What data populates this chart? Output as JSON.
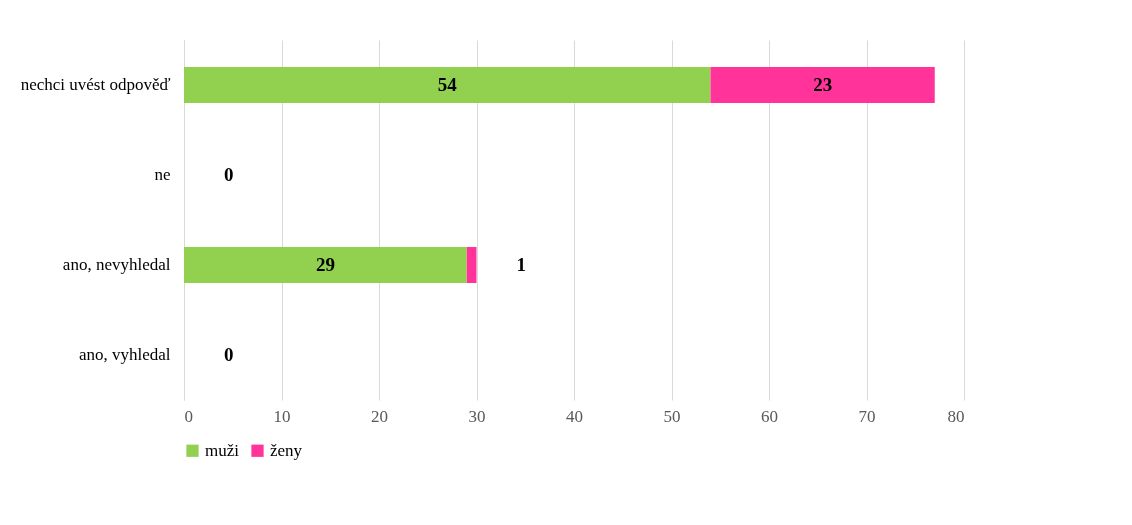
{
  "chart_data": {
    "type": "bar",
    "orientation": "horizontal",
    "stacked": true,
    "categories": [
      "nechci uvést odpověď",
      "ne",
      "ano, nevyhledal",
      "ano, vyhledal"
    ],
    "series": [
      {
        "name": "muži",
        "color": "#92d050",
        "values": [
          54,
          0,
          29,
          0
        ],
        "value_labels": [
          "54",
          null,
          "29",
          null
        ]
      },
      {
        "name": "ženy",
        "color": "#ff3399",
        "values": [
          23,
          0,
          1,
          0
        ],
        "value_labels": [
          "23",
          "0",
          "1",
          "0"
        ]
      }
    ],
    "xlim": [
      0,
      80
    ],
    "xticks": [
      0,
      10,
      20,
      30,
      40,
      50,
      60,
      70,
      80
    ],
    "grid": "x",
    "legend": "bottom"
  }
}
